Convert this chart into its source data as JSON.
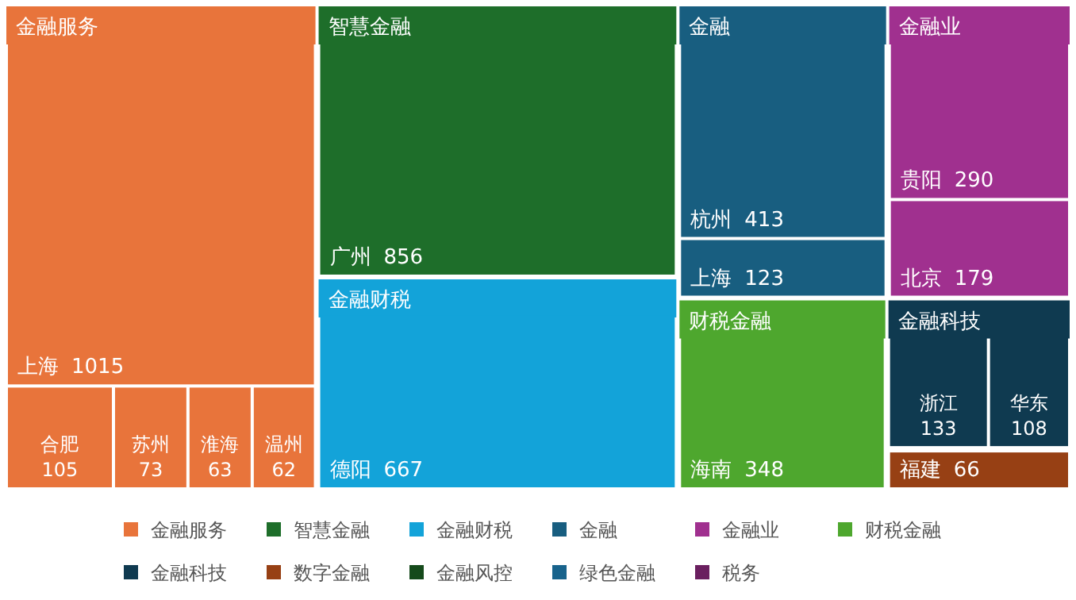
{
  "chart_data": {
    "type": "other",
    "legend": "bottom",
    "data_labels": true,
    "categories": [
      "上海",
      "合肥",
      "苏州",
      "淮海",
      "温州",
      "广州",
      "德阳",
      "杭州",
      "上海",
      "贵阳",
      "北京",
      "海南",
      "浙江",
      "华东",
      "福建"
    ],
    "series": [
      {
        "name": "金融服务",
        "color": "#e8743b",
        "values": [
          1015,
          105,
          73,
          63,
          62,
          null,
          null,
          null,
          null,
          null,
          null,
          null,
          null,
          null,
          null
        ]
      },
      {
        "name": "智慧金融",
        "color": "#1e6e2a",
        "values": [
          null,
          null,
          null,
          null,
          null,
          856,
          null,
          null,
          null,
          null,
          null,
          null,
          null,
          null,
          null
        ]
      },
      {
        "name": "金融财税",
        "color": "#13a3d9",
        "values": [
          null,
          null,
          null,
          null,
          null,
          null,
          667,
          null,
          null,
          null,
          null,
          null,
          null,
          null,
          null
        ]
      },
      {
        "name": "金融",
        "color": "#185e80",
        "values": [
          null,
          null,
          null,
          null,
          null,
          null,
          null,
          413,
          123,
          null,
          null,
          null,
          null,
          null,
          null
        ]
      },
      {
        "name": "金融业",
        "color": "#a0308f",
        "values": [
          null,
          null,
          null,
          null,
          null,
          null,
          null,
          null,
          null,
          290,
          179,
          null,
          null,
          null,
          null
        ]
      },
      {
        "name": "财税金融",
        "color": "#4ea72e",
        "values": [
          null,
          null,
          null,
          null,
          null,
          null,
          null,
          null,
          null,
          null,
          null,
          348,
          null,
          null,
          null
        ]
      },
      {
        "name": "金融科技",
        "color": "#0f3a50",
        "values": [
          null,
          null,
          null,
          null,
          null,
          null,
          null,
          null,
          null,
          null,
          null,
          null,
          133,
          108,
          null
        ]
      },
      {
        "name": "数字金融",
        "color": "#974014",
        "values": [
          null,
          null,
          null,
          null,
          null,
          null,
          null,
          null,
          null,
          null,
          null,
          null,
          null,
          null,
          66
        ]
      },
      {
        "name": "金融风控",
        "color": "#154a1b",
        "values": [
          null,
          null,
          null,
          null,
          null,
          null,
          null,
          null,
          null,
          null,
          null,
          null,
          null,
          null,
          null
        ]
      },
      {
        "name": "绿色金融",
        "color": "#18638c",
        "values": [
          null,
          null,
          null,
          null,
          null,
          null,
          null,
          null,
          null,
          null,
          null,
          null,
          null,
          null,
          null
        ]
      },
      {
        "name": "税务",
        "color": "#6a1f5f",
        "values": [
          null,
          null,
          null,
          null,
          null,
          null,
          null,
          null,
          null,
          null,
          null,
          null,
          null,
          null,
          null
        ]
      }
    ]
  }
}
